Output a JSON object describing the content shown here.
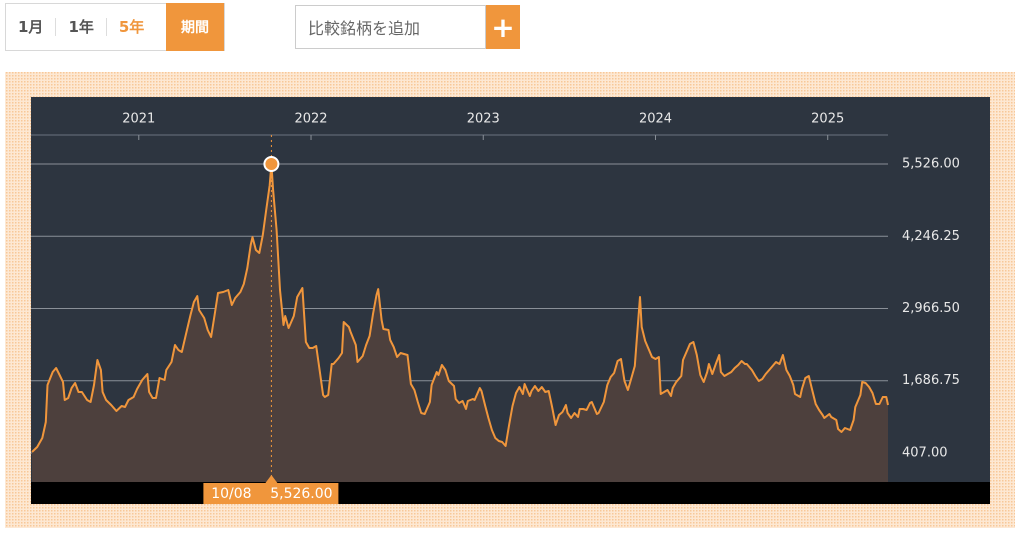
{
  "controls": {
    "periods": [
      "1月",
      "1年",
      "5年"
    ],
    "custom_period": "期間",
    "compare_placeholder": "比較銘柄を追加",
    "add_button": "+"
  },
  "chart_data": {
    "type": "line",
    "x": [
      2020.38,
      2020.41,
      2020.44,
      2020.46,
      2020.47,
      2020.5,
      2020.52,
      2020.54,
      2020.56,
      2020.57,
      2020.59,
      2020.61,
      2020.63,
      2020.65,
      2020.67,
      2020.7,
      2020.72,
      2020.74,
      2020.76,
      2020.78,
      2020.79,
      2020.81,
      2020.84,
      2020.87,
      2020.9,
      2020.92,
      2020.94,
      2020.97,
      2020.99,
      2021.02,
      2021.05,
      2021.06,
      2021.08,
      2021.1,
      2021.12,
      2021.15,
      2021.16,
      2021.19,
      2021.21,
      2021.23,
      2021.25,
      2021.27,
      2021.3,
      2021.32,
      2021.34,
      2021.35,
      2021.38,
      2021.4,
      2021.42,
      2021.44,
      2021.46,
      2021.49,
      2021.52,
      2021.54,
      2021.56,
      2021.59,
      2021.61,
      2021.63,
      2021.65,
      2021.66,
      2021.68,
      2021.7,
      2021.72,
      2021.74,
      2021.76,
      2021.77,
      2021.78,
      2021.8,
      2021.82,
      2021.84,
      2021.85,
      2021.87,
      2021.9,
      2021.92,
      2021.95,
      2021.97,
      2021.99,
      2022.01,
      2022.03,
      2022.05,
      2022.07,
      2022.08,
      2022.1,
      2022.12,
      2022.13,
      2022.16,
      2022.18,
      2022.19,
      2022.22,
      2022.23,
      2022.26,
      2022.27,
      2022.3,
      2022.32,
      2022.34,
      2022.36,
      2022.38,
      2022.39,
      2022.41,
      2022.42,
      2022.45,
      2022.46,
      2022.48,
      2022.5,
      2022.52,
      2022.54,
      2022.56,
      2022.58,
      2022.6,
      2022.62,
      2022.64,
      2022.66,
      2022.69,
      2022.7,
      2022.73,
      2022.74,
      2022.76,
      2022.78,
      2022.8,
      2022.83,
      2022.84,
      2022.86,
      2022.88,
      2022.9,
      2022.91,
      2022.94,
      2022.95,
      2022.98,
      2022.99,
      2023.01,
      2023.03,
      2023.05,
      2023.07,
      2023.09,
      2023.11,
      2023.13,
      2023.15,
      2023.17,
      2023.19,
      2023.21,
      2023.23,
      2023.24,
      2023.27,
      2023.28,
      2023.3,
      2023.32,
      2023.34,
      2023.36,
      2023.38,
      2023.4,
      2023.42,
      2023.44,
      2023.46,
      2023.48,
      2023.49,
      2023.51,
      2023.53,
      2023.55,
      2023.56,
      2023.58,
      2023.6,
      2023.62,
      2023.63,
      2023.66,
      2023.67,
      2023.7,
      2023.72,
      2023.74,
      2023.76,
      2023.78,
      2023.8,
      2023.82,
      2023.84,
      2023.86,
      2023.88,
      2023.89,
      2023.91,
      2023.92,
      2023.94,
      2023.96,
      2023.98,
      2024.0,
      2024.02,
      2024.03,
      2024.05,
      2024.07,
      2024.09,
      2024.1,
      2024.12,
      2024.15,
      2024.16,
      2024.19,
      2024.2,
      2024.22,
      2024.24,
      2024.26,
      2024.28,
      2024.3,
      2024.31,
      2024.33,
      2024.35,
      2024.37,
      2024.38,
      2024.4,
      2024.42,
      2024.44,
      2024.46,
      2024.48,
      2024.5,
      2024.52,
      2024.53,
      2024.56,
      2024.58,
      2024.6,
      2024.62,
      2024.64,
      2024.66,
      2024.68,
      2024.7,
      2024.72,
      2024.74,
      2024.76,
      2024.78,
      2024.8,
      2024.81,
      2024.84,
      2024.85,
      2024.87,
      2024.89,
      2024.91,
      2024.93,
      2024.95,
      2024.97,
      2024.98,
      2025.01,
      2025.02,
      2025.05,
      2025.06,
      2025.08,
      2025.1,
      2025.13,
      2025.15,
      2025.16,
      2025.19,
      2025.2,
      2025.22,
      2025.24,
      2025.26,
      2025.28,
      2025.3,
      2025.32,
      2025.34,
      2025.35
    ],
    "values": [
      425,
      513,
      673,
      956,
      1611,
      1842,
      1912,
      1788,
      1664,
      1346,
      1381,
      1558,
      1647,
      1487,
      1487,
      1346,
      1310,
      1611,
      2054,
      1877,
      1487,
      1346,
      1257,
      1151,
      1239,
      1222,
      1346,
      1399,
      1541,
      1700,
      1806,
      1487,
      1381,
      1381,
      1735,
      1700,
      1877,
      2019,
      2320,
      2231,
      2196,
      2461,
      2851,
      3081,
      3187,
      2940,
      2798,
      2585,
      2461,
      2851,
      3241,
      3258,
      3294,
      3028,
      3152,
      3258,
      3400,
      3683,
      4091,
      4232,
      4002,
      3949,
      4268,
      4711,
      5153,
      5526,
      5065,
      4356,
      3294,
      2674,
      2833,
      2621,
      2833,
      3170,
      3329,
      2373,
      2267,
      2267,
      2302,
      1877,
      1434,
      1399,
      1434,
      1983,
      1983,
      2089,
      2178,
      2727,
      2638,
      2550,
      2320,
      2019,
      2125,
      2320,
      2479,
      2869,
      3205,
      3311,
      2762,
      2603,
      2585,
      2408,
      2284,
      2107,
      2178,
      2160,
      2143,
      1629,
      1523,
      1310,
      1115,
      1098,
      1310,
      1611,
      1842,
      1788,
      1965,
      1877,
      1682,
      1594,
      1363,
      1293,
      1328,
      1186,
      1328,
      1363,
      1346,
      1558,
      1505,
      1257,
      1027,
      814,
      673,
      620,
      602,
      531,
      903,
      1239,
      1470,
      1576,
      1452,
      1629,
      1417,
      1505,
      1594,
      1505,
      1576,
      1487,
      1505,
      1222,
      903,
      1080,
      1133,
      1257,
      1115,
      1027,
      1115,
      1045,
      1186,
      1186,
      1169,
      1293,
      1310,
      1098,
      1115,
      1310,
      1611,
      1753,
      1824,
      2036,
      2072,
      1682,
      1523,
      1735,
      1948,
      2355,
      3170,
      2638,
      2391,
      2249,
      2107,
      2072,
      2107,
      1452,
      1487,
      1523,
      1417,
      1558,
      1664,
      1771,
      2054,
      2267,
      2338,
      2373,
      2143,
      1788,
      1664,
      1842,
      1983,
      1806,
      1983,
      2143,
      1842,
      1771,
      1806,
      1842,
      1912,
      1965,
      2036,
      1983,
      1983,
      1877,
      1771,
      1682,
      1718,
      1806,
      1877,
      1948,
      2019,
      1983,
      2143,
      1877,
      1771,
      1611,
      1452,
      1399,
      1541,
      1735,
      1771,
      1523,
      1275,
      1169,
      1080,
      1027,
      1098,
      1045,
      991,
      832,
      779,
      850,
      814,
      991,
      1222,
      1434,
      1664,
      1647,
      1576,
      1470,
      1275,
      1275,
      1399,
      1399,
      1257
    ],
    "color": "#f0963c",
    "xlim": [
      2020.38,
      2025.35
    ],
    "xticks": [
      2021,
      2022,
      2023,
      2024,
      2025
    ],
    "ylim": [
      -107,
      6040
    ],
    "yticks": [
      {
        "value": 407,
        "label": "407.00"
      },
      {
        "value": 1686.75,
        "label": "1,686.75"
      },
      {
        "value": 2966.5,
        "label": "2,966.50"
      },
      {
        "value": 4246.25,
        "label": "4,246.25"
      },
      {
        "value": 5526,
        "label": "5,526.00"
      }
    ],
    "grid": true,
    "tooltip": {
      "date": "10/08",
      "value": 5526,
      "value_label": "5,526.00"
    }
  }
}
